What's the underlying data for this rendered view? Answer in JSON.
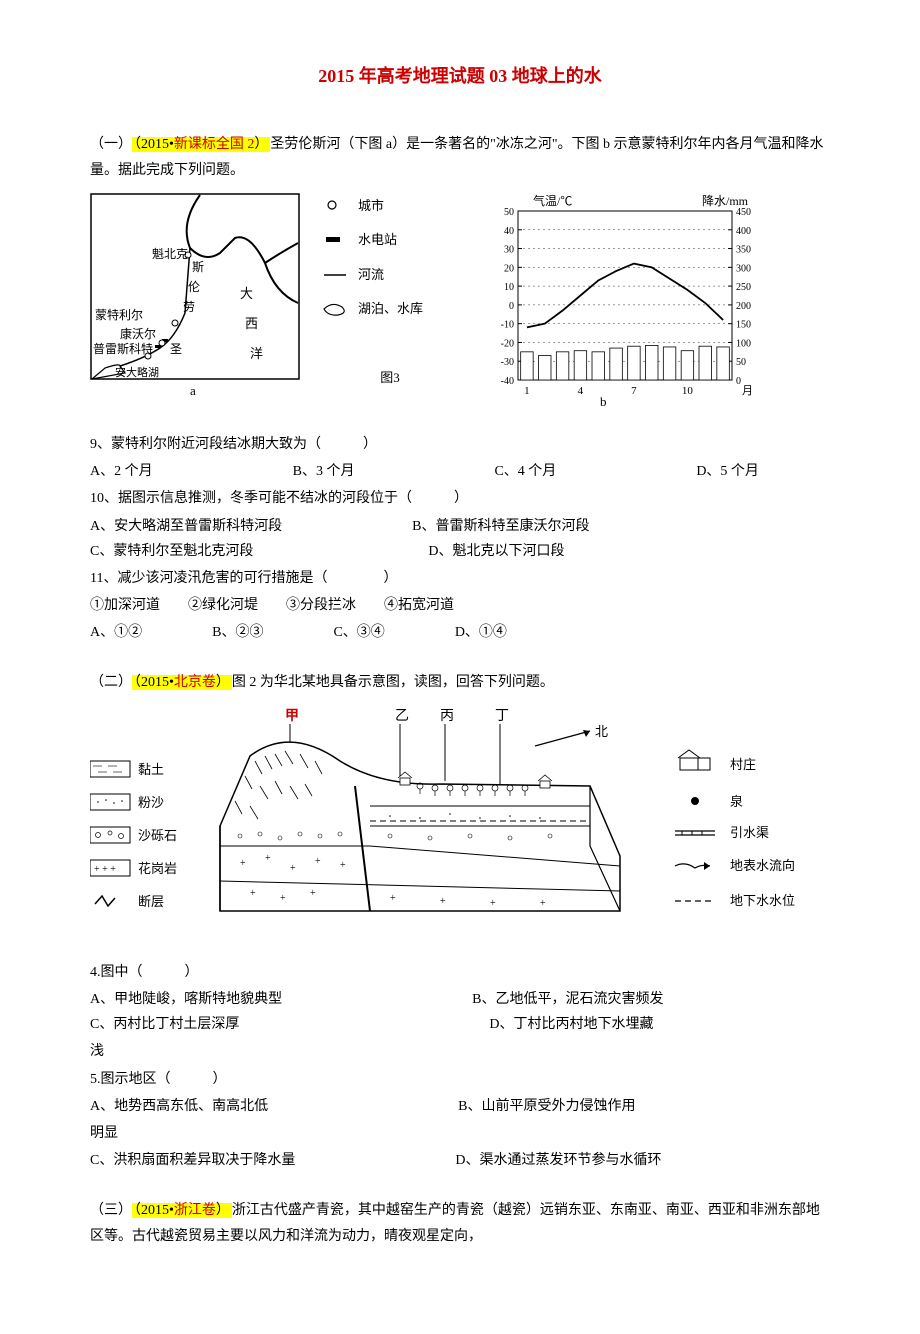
{
  "title": "2015 年高考地理试题 03 地球上的水",
  "section1": {
    "intro_prefix": "（一）",
    "source": "（2015•新课标全国 2）",
    "source_red": "新课标全国 2",
    "intro_text": "圣劳伦斯河（下图 a）是一条著名的\"冰冻之河\"。下图 b 示意蒙特利尔年内各月气温和降水量。据此完成下列问题。",
    "map": {
      "cities": [
        "魁北克",
        "蒙特利尔",
        "康沃尔",
        "普雷斯科特"
      ],
      "lake": "安大略湖",
      "sea_labels": [
        "大",
        "西",
        "洋"
      ],
      "river_labels": [
        "斯",
        "伦",
        "劳",
        "圣"
      ],
      "legend": {
        "city": "城市",
        "station": "水电站",
        "river": "河流",
        "lake": "湖泊、水库"
      },
      "caption": "a"
    },
    "center_caption": "图3",
    "chart": {
      "y_left_label": "气温/℃",
      "y_right_label": "降水/mm",
      "y_left_ticks": [
        50,
        40,
        30,
        20,
        10,
        0,
        -10,
        -20,
        -30,
        -40
      ],
      "y_right_ticks": [
        450,
        400,
        350,
        300,
        250,
        200,
        150,
        100,
        50,
        0
      ],
      "x_ticks": [
        1,
        4,
        7,
        10
      ],
      "x_label": "月",
      "temp_values": [
        -12,
        -10,
        -3,
        5,
        13,
        18,
        22,
        20,
        14,
        8,
        1,
        -8
      ],
      "precip_values": [
        75,
        65,
        75,
        78,
        75,
        85,
        90,
        92,
        88,
        78,
        90,
        88
      ],
      "caption": "b",
      "bg": "#ffffff",
      "line_color": "#000000",
      "bar_fill": "#ffffff",
      "bar_stroke": "#000000"
    },
    "q9": {
      "stem": "9、蒙特利尔附近河段结冰期大致为（　　　）",
      "opts": [
        "A、2 个月",
        "B、3 个月",
        "C、4 个月",
        "D、5 个月"
      ]
    },
    "q10": {
      "stem": "10、据图示信息推测，冬季可能不结冰的河段位于（　　　）",
      "opts": [
        "A、安大略湖至普雷斯科特河段",
        "B、普雷斯科特至康沃尔河段",
        "C、蒙特利尔至魁北克河段",
        "D、魁北克以下河口段"
      ]
    },
    "q11": {
      "stem": "11、减少该河凌汛危害的可行措施是（　　　　）",
      "sub": "①加深河道　　②绿化河堤　　③分段拦冰　　④拓宽河道",
      "opts": [
        "A、①②",
        "B、②③",
        "C、③④",
        "D、①④"
      ]
    }
  },
  "section2": {
    "intro_prefix": "（二）",
    "source": "（2015•北京卷）",
    "source_red": "北京卷",
    "intro_text": "图 2 为华北某地具备示意图，读图，回答下列问题。",
    "diagram": {
      "top_labels": [
        "甲",
        "乙",
        "丙",
        "丁"
      ],
      "north": "北",
      "left_legend": [
        {
          "label": "黏土"
        },
        {
          "label": "粉沙"
        },
        {
          "label": "沙砾石"
        },
        {
          "label": "花岗岩"
        },
        {
          "label": "断层"
        }
      ],
      "right_legend": [
        {
          "label": "村庄"
        },
        {
          "label": "泉"
        },
        {
          "label": "引水渠"
        },
        {
          "label": "地表水流向"
        },
        {
          "label": "地下水水位"
        }
      ]
    },
    "q4": {
      "stem": "4.图中（　　　）",
      "opts": [
        "A、甲地陡峻，喀斯特地貌典型",
        "B、乙地低平，泥石流灾害频发",
        "C、丙村比丁村土层深厚",
        "D、丁村比丙村地下水埋藏"
      ],
      "trailing": "浅"
    },
    "q5": {
      "stem": "5.图示地区（　　　）",
      "opts": [
        "A、地势西高东低、南高北低",
        "B、山前平原受外力侵蚀作用",
        "C、洪积扇面积差异取决于降水量",
        "D、渠水通过蒸发环节参与水循环"
      ],
      "trailing": "明显"
    }
  },
  "section3": {
    "intro_prefix": "（三）",
    "source": "（2015•浙江卷）",
    "source_red": "浙江卷",
    "intro_text": "浙江古代盛产青瓷，其中越窑生产的青瓷（越瓷）远销东亚、东南亚、南亚、西亚和非洲东部地区等。古代越瓷贸易主要以风力和洋流为动力，晴夜观星定向，"
  }
}
